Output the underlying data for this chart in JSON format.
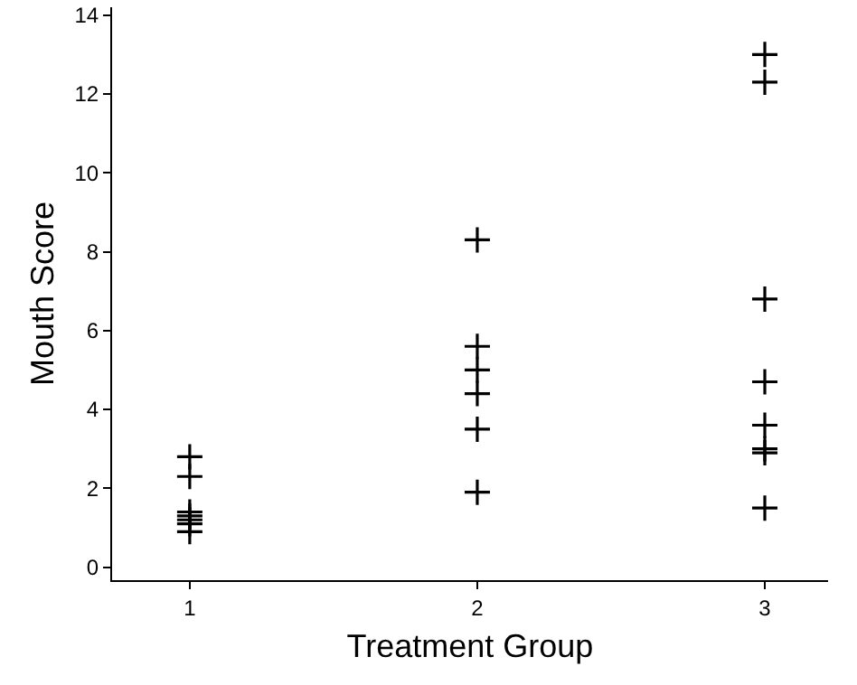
{
  "chart_data": {
    "type": "scatter",
    "xlabel": "Treatment Group",
    "ylabel": "Mouth Score",
    "x": [
      1,
      1,
      1,
      1,
      1,
      1,
      1,
      2,
      2,
      2,
      2,
      2,
      2,
      3,
      3,
      3,
      3,
      3,
      3,
      3,
      3
    ],
    "series": [
      {
        "color": "#000000",
        "values": [
          2.8,
          2.3,
          1.4,
          1.3,
          1.2,
          1.1,
          0.9,
          8.3,
          5.6,
          5.0,
          4.4,
          3.5,
          1.9,
          13.0,
          12.3,
          6.8,
          4.7,
          3.6,
          3.0,
          2.9,
          1.5
        ]
      }
    ],
    "xlim": [
      0.73,
      3.22
    ],
    "xticks": [
      1,
      2,
      3
    ],
    "ylim": [
      -0.33,
      14.2
    ],
    "yticks": [
      0,
      2,
      4,
      6,
      8,
      10,
      12,
      14
    ],
    "grid": false,
    "legend": false,
    "marker": "cross"
  }
}
